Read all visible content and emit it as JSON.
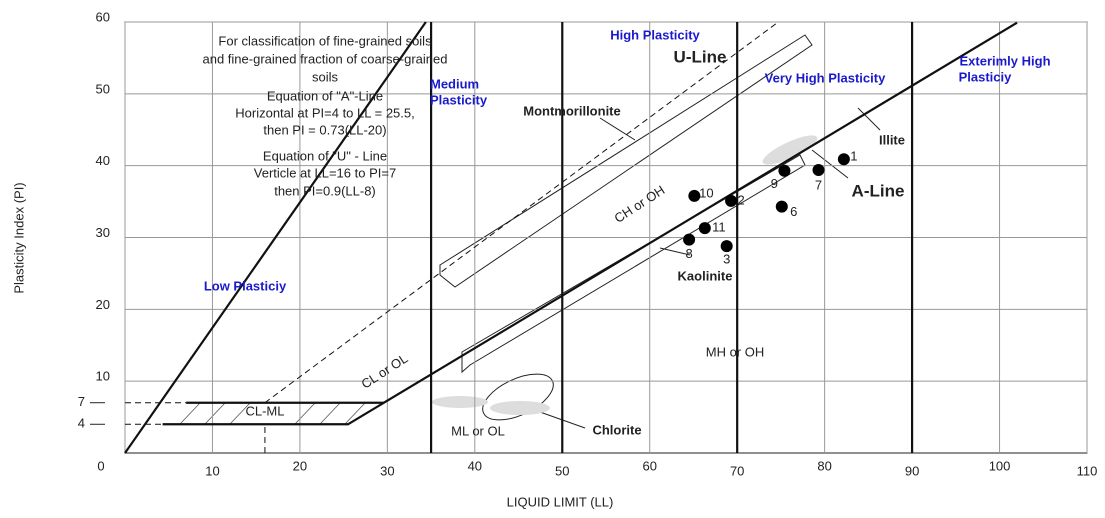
{
  "chart_data": {
    "type": "scatter",
    "xlabel": "LIQUID LIMIT (LL)",
    "ylabel": "Plasticity Index (PI)",
    "xlim": [
      0,
      110
    ],
    "ylim": [
      0,
      60
    ],
    "xticks": [
      0,
      10,
      20,
      30,
      40,
      50,
      60,
      70,
      80,
      90,
      100,
      110
    ],
    "yticks": [
      4,
      7,
      10,
      20,
      30,
      40,
      50,
      60
    ],
    "grid": true,
    "series": [
      {
        "color": "#000000",
        "x": [
          82.2,
          69.3,
          68.8,
          75.1,
          79.3,
          64.5,
          75.4,
          65.1,
          66.3
        ],
        "values": [
          40.9,
          35.1,
          28.8,
          34.3,
          39.4,
          29.7,
          39.3,
          35.8,
          31.3
        ],
        "labels": [
          "1",
          "2",
          "3",
          "6",
          "7",
          "8",
          "9",
          "10",
          "11"
        ]
      }
    ],
    "lines": [
      {
        "x": [
          4.3,
          25.5,
          102
        ],
        "y": [
          4,
          4,
          59.9
        ],
        "style": "solid",
        "width": 2.2
      },
      {
        "x": [
          7,
          29.6
        ],
        "y": [
          7,
          7
        ],
        "style": "solid",
        "width": 2.2
      },
      {
        "x": [
          0,
          34.4
        ],
        "y": [
          0,
          60
        ],
        "style": "solid",
        "width": 2.2
      },
      {
        "x": [
          16,
          74.7
        ],
        "y": [
          7,
          60
        ],
        "style": "dashed",
        "width": 1
      },
      {
        "x": [
          0,
          7
        ],
        "y": [
          7,
          7
        ],
        "style": "dashed",
        "width": 1
      },
      {
        "x": [
          0,
          4.3
        ],
        "y": [
          4,
          4
        ],
        "style": "dashed",
        "width": 1
      },
      {
        "x": [
          16,
          16
        ],
        "y": [
          0,
          4
        ],
        "style": "dashed",
        "width": 1
      },
      {
        "x": [
          35,
          35
        ],
        "y": [
          0,
          60
        ],
        "style": "solid",
        "width": 2.2
      },
      {
        "x": [
          50,
          50
        ],
        "y": [
          0,
          60
        ],
        "style": "solid",
        "width": 2.2
      },
      {
        "x": [
          70,
          70
        ],
        "y": [
          0,
          60
        ],
        "style": "solid",
        "width": 2.2
      },
      {
        "x": [
          90,
          90
        ],
        "y": [
          0,
          60
        ],
        "style": "solid",
        "width": 2.2
      }
    ],
    "annotations": [
      "For classification of fine-grained soils",
      "and fine-grained fraction of coarse-grained",
      "soils",
      "Equation of \"A\"-Line",
      "Horizontal at PI=4 to LL = 25.5,",
      "then PI = 0.73(LL-20)",
      "Equation of \"U\" - Line",
      "Verticle at LL=16 to PI=7",
      "then PI=0.9(LL-8)",
      "High Plasticity",
      "U-Line",
      "Medium",
      "Plasticity",
      "Very High Plasticity",
      "Exterimly High",
      "Plasticiy",
      "Low Plasticiy",
      "Montmorillonite",
      "Illite",
      "A-Line",
      "Kaolinite",
      "Chlorite",
      "CH or OH",
      "CL or OL",
      "CL-ML",
      "MH or OH",
      "ML or OL"
    ]
  }
}
